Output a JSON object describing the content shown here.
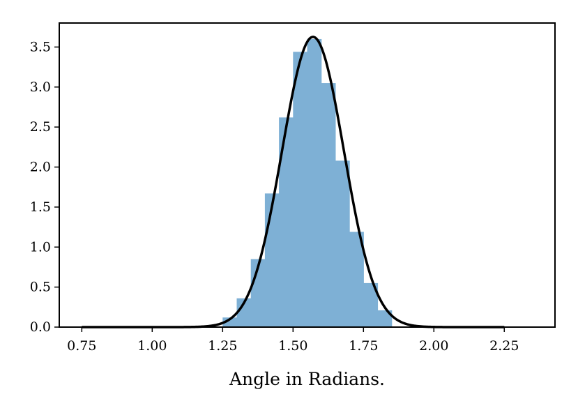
{
  "chart_data": {
    "type": "histogram",
    "xlabel": "Angle in Radians.",
    "ylabel": "",
    "xlim": [
      0.67,
      2.43
    ],
    "ylim": [
      0,
      3.8
    ],
    "xticks": [
      {
        "value": 0.75,
        "label": "0.75"
      },
      {
        "value": 1.0,
        "label": "1.00"
      },
      {
        "value": 1.25,
        "label": "1.25"
      },
      {
        "value": 1.5,
        "label": "1.50"
      },
      {
        "value": 1.75,
        "label": "1.75"
      },
      {
        "value": 2.0,
        "label": "2.00"
      },
      {
        "value": 2.25,
        "label": "2.25"
      }
    ],
    "yticks": [
      {
        "value": 0.0,
        "label": "0.0"
      },
      {
        "value": 0.5,
        "label": "0.5"
      },
      {
        "value": 1.0,
        "label": "1.0"
      },
      {
        "value": 1.5,
        "label": "1.5"
      },
      {
        "value": 2.0,
        "label": "2.0"
      },
      {
        "value": 2.5,
        "label": "2.5"
      },
      {
        "value": 3.0,
        "label": "3.0"
      },
      {
        "value": 3.5,
        "label": "3.5"
      }
    ],
    "grid": false,
    "bins": [
      {
        "x0": 1.25,
        "x1": 1.3,
        "value": 0.12
      },
      {
        "x0": 1.3,
        "x1": 1.35,
        "value": 0.36
      },
      {
        "x0": 1.35,
        "x1": 1.4,
        "value": 0.85
      },
      {
        "x0": 1.4,
        "x1": 1.45,
        "value": 1.67
      },
      {
        "x0": 1.45,
        "x1": 1.5,
        "value": 2.62
      },
      {
        "x0": 1.5,
        "x1": 1.55,
        "value": 3.44
      },
      {
        "x0": 1.55,
        "x1": 1.6,
        "value": 3.6
      },
      {
        "x0": 1.6,
        "x1": 1.65,
        "value": 3.05
      },
      {
        "x0": 1.65,
        "x1": 1.7,
        "value": 2.08
      },
      {
        "x0": 1.7,
        "x1": 1.75,
        "value": 1.19
      },
      {
        "x0": 1.75,
        "x1": 1.8,
        "value": 0.55
      },
      {
        "x0": 1.8,
        "x1": 1.85,
        "value": 0.21
      }
    ],
    "curve": {
      "type": "normal-pdf",
      "mean": 1.5708,
      "std": 0.11,
      "x_range": [
        0.75,
        2.25
      ]
    },
    "colors": {
      "bars": "#7eb0d5",
      "curve": "#000000",
      "axes": "#000000"
    }
  }
}
